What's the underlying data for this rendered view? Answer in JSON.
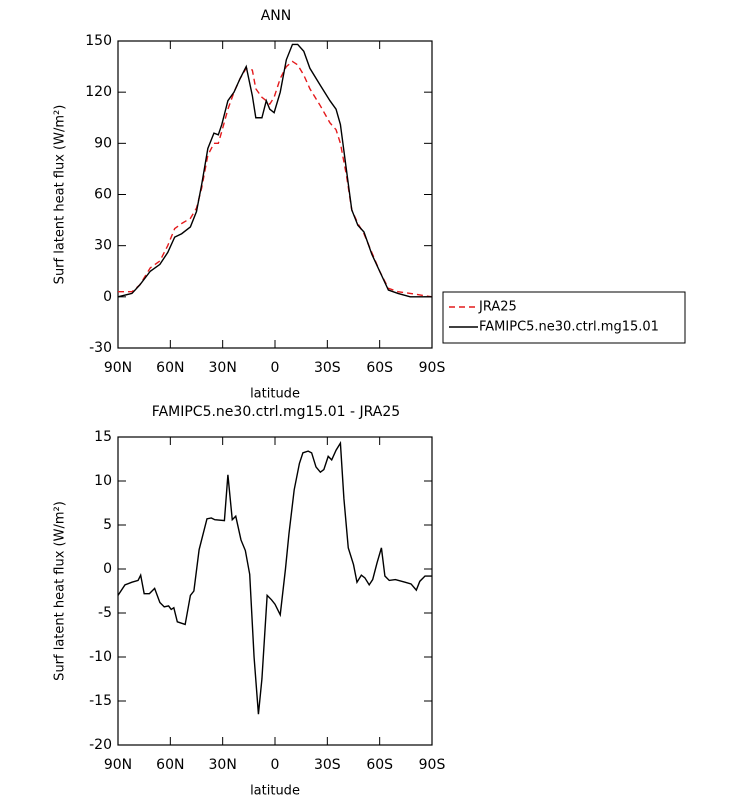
{
  "chart_data": [
    {
      "type": "line",
      "title": "ANN",
      "xlabel": "latitude",
      "ylabel": "Surf latent heat flux (W/m²)",
      "x": [
        90,
        82,
        77.5,
        71.5,
        66,
        61.5,
        57.5,
        53.5,
        48.5,
        45,
        42,
        38.5,
        35,
        32.5,
        30.5,
        27,
        23.5,
        20,
        16.5,
        13,
        11,
        7.5,
        5,
        3,
        0.5,
        -3,
        -6.5,
        -10,
        -13,
        -16.5,
        -20,
        -26,
        -31.5,
        -35,
        -37.5,
        -41,
        -44,
        -47.5,
        -51,
        -55.5,
        -60,
        -65,
        -70.5,
        -77.5,
        -90
      ],
      "series": [
        {
          "name": "JRA25",
          "color": "#e41a1c",
          "dashed": true,
          "values": [
            3,
            3,
            7,
            17,
            21,
            30,
            40,
            43,
            46,
            52,
            64,
            83,
            90,
            90,
            97,
            110,
            120,
            128,
            134,
            133,
            122,
            117,
            115,
            113,
            117,
            128,
            135,
            138,
            136,
            130,
            122,
            112,
            102,
            98,
            90,
            71,
            51,
            43,
            37,
            26,
            15,
            5,
            3,
            2,
            0
          ]
        },
        {
          "name": "FAMIPC5.ne30.ctrl.mg15.01",
          "color": "#000000",
          "dashed": false,
          "values": [
            0,
            2,
            7,
            15,
            19,
            26,
            35,
            37,
            41,
            50,
            66,
            87,
            96,
            95,
            101,
            115,
            120,
            128,
            135,
            118,
            105,
            105,
            115,
            110,
            108,
            120,
            139,
            148,
            148,
            144,
            134,
            124,
            115,
            110,
            101,
            74,
            51,
            42,
            38,
            25,
            15,
            4,
            2,
            0,
            0
          ]
        }
      ],
      "xlim": [
        90,
        -90
      ],
      "xticks": [
        {
          "value": 90,
          "label": "90N"
        },
        {
          "value": 60,
          "label": "60N"
        },
        {
          "value": 30,
          "label": "30N"
        },
        0,
        {
          "value": -30,
          "label": "30S"
        },
        {
          "value": -60,
          "label": "60S"
        },
        {
          "value": -90,
          "label": "90S"
        }
      ],
      "ylim": [
        -30,
        150
      ],
      "yticks": [
        -30,
        0,
        30,
        60,
        90,
        120,
        150
      ],
      "legend": "right"
    },
    {
      "type": "line",
      "title": "FAMIPC5.ne30.ctrl.mg15.01 - JRA25",
      "xlabel": "latitude",
      "ylabel": "Surf latent heat flux (W/m²)",
      "x": [
        90,
        86,
        82,
        78.5,
        77,
        75,
        72,
        69,
        66,
        63.5,
        61,
        59.5,
        58,
        56,
        51.5,
        48.5,
        46.5,
        43.5,
        39,
        36.5,
        34.5,
        29,
        27,
        24.5,
        22.5,
        19.5,
        17,
        14.5,
        12,
        9.5,
        7.5,
        4.5,
        2,
        0,
        -3,
        -6,
        -8,
        -11,
        -14,
        -16,
        -19,
        -21,
        -23.5,
        -26,
        -28,
        -30.5,
        -32.5,
        -35,
        -37.5,
        -39.5,
        -42,
        -45,
        -47,
        -49.5,
        -51.5,
        -54,
        -56,
        -58.5,
        -61,
        -63,
        -65.5,
        -69,
        -74.5,
        -78,
        -81,
        -83,
        -86,
        -90
      ],
      "color": "#000000",
      "values": [
        -3,
        -1.8,
        -1.5,
        -1.3,
        -0.7,
        -2.8,
        -2.8,
        -2.2,
        -3.8,
        -4.3,
        -4.2,
        -4.6,
        -4.4,
        -6,
        -6.3,
        -3,
        -2.5,
        2.2,
        5.7,
        5.8,
        5.6,
        5.5,
        10.7,
        5.6,
        6,
        3.3,
        2.1,
        -0.6,
        -10,
        -16.5,
        -12.5,
        -3,
        -3.5,
        -4,
        -5.2,
        0,
        4,
        9,
        12,
        13.2,
        13.4,
        13.2,
        11.6,
        11,
        11.3,
        12.8,
        12.4,
        13.5,
        14.3,
        8,
        2.4,
        0.5,
        -1.5,
        -0.7,
        -1,
        -1.8,
        -1.2,
        0.7,
        2.4,
        -0.8,
        -1.3,
        -1.2,
        -1.5,
        -1.7,
        -2.4,
        -1.4,
        -0.8,
        -0.8
      ],
      "xlim": [
        90,
        -90
      ],
      "xticks": [
        {
          "value": 90,
          "label": "90N"
        },
        {
          "value": 60,
          "label": "60N"
        },
        {
          "value": 30,
          "label": "30N"
        },
        0,
        {
          "value": -30,
          "label": "30S"
        },
        {
          "value": -60,
          "label": "60S"
        },
        {
          "value": -90,
          "label": "90S"
        }
      ],
      "ylim": [
        -20,
        15
      ],
      "yticks": [
        -20,
        -15,
        -10,
        -5,
        0,
        5,
        10,
        15
      ]
    }
  ]
}
